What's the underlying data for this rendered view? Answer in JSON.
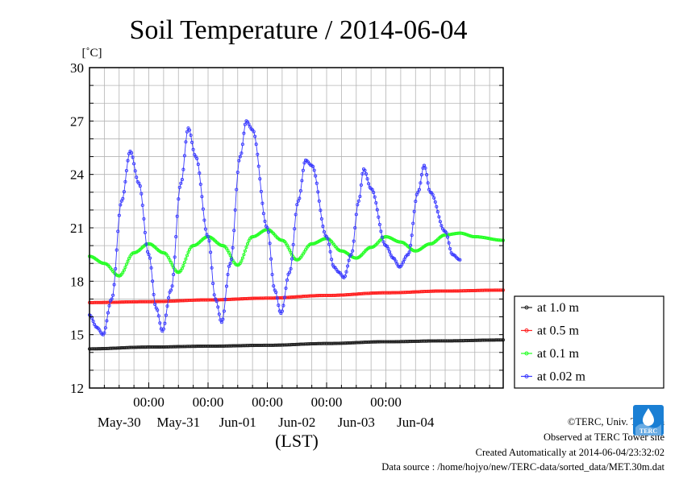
{
  "chart_data": {
    "type": "line",
    "title": "Soil Temperature / 2014-06-04",
    "ylabel": "[˚C]",
    "xlabel": "(LST)",
    "ylim": [
      12,
      30
    ],
    "yticks": [
      "12",
      "15",
      "18",
      "21",
      "24",
      "27",
      "30"
    ],
    "x_time_ticks": [
      "00:00",
      "00:00",
      "00:00",
      "00:00",
      "00:00"
    ],
    "x_date_ticks": [
      "May-30",
      "May-31",
      "Jun-01",
      "Jun-02",
      "Jun-03",
      "Jun-04"
    ],
    "xlim": [
      "2014-05-29 00:00",
      "2014-06-04 23:30"
    ],
    "grid": true,
    "legend_position": "bottom-right outside",
    "series": [
      {
        "name": "at 1.0 m",
        "color": "#222222",
        "points": [
          [
            "05-29 00:00",
            14.2
          ],
          [
            "05-30 00:00",
            14.3
          ],
          [
            "05-31 00:00",
            14.35
          ],
          [
            "06-01 00:00",
            14.4
          ],
          [
            "06-02 00:00",
            14.5
          ],
          [
            "06-03 00:00",
            14.6
          ],
          [
            "06-04 00:00",
            14.65
          ],
          [
            "06-04 23:30",
            14.7
          ]
        ]
      },
      {
        "name": "at 0.5 m",
        "color": "#ff2020",
        "points": [
          [
            "05-29 00:00",
            16.8
          ],
          [
            "05-30 00:00",
            16.85
          ],
          [
            "05-31 00:00",
            16.95
          ],
          [
            "06-01 00:00",
            17.05
          ],
          [
            "06-02 00:00",
            17.2
          ],
          [
            "06-03 00:00",
            17.35
          ],
          [
            "06-04 00:00",
            17.45
          ],
          [
            "06-04 23:30",
            17.5
          ]
        ]
      },
      {
        "name": "at 0.1 m",
        "color": "#22ff22",
        "points": [
          [
            "05-29 00:00",
            19.4
          ],
          [
            "05-29 06:00",
            19.0
          ],
          [
            "05-29 12:00",
            18.3
          ],
          [
            "05-29 18:00",
            19.6
          ],
          [
            "05-30 00:00",
            20.1
          ],
          [
            "05-30 06:00",
            19.6
          ],
          [
            "05-30 12:00",
            18.5
          ],
          [
            "05-30 18:00",
            20.0
          ],
          [
            "05-31 00:00",
            20.5
          ],
          [
            "05-31 06:00",
            20.0
          ],
          [
            "05-31 12:00",
            18.9
          ],
          [
            "05-31 18:00",
            20.5
          ],
          [
            "06-01 00:00",
            20.9
          ],
          [
            "06-01 06:00",
            20.3
          ],
          [
            "06-01 12:00",
            19.2
          ],
          [
            "06-01 18:00",
            20.1
          ],
          [
            "06-02 00:00",
            20.4
          ],
          [
            "06-02 06:00",
            19.7
          ],
          [
            "06-02 12:00",
            19.3
          ],
          [
            "06-02 18:00",
            19.9
          ],
          [
            "06-03 00:00",
            20.5
          ],
          [
            "06-03 06:00",
            20.2
          ],
          [
            "06-03 12:00",
            19.7
          ],
          [
            "06-03 18:00",
            20.1
          ],
          [
            "06-04 00:00",
            20.6
          ],
          [
            "06-04 06:00",
            20.7
          ],
          [
            "06-04 12:00",
            20.5
          ],
          [
            "06-04 23:30",
            20.3
          ]
        ]
      },
      {
        "name": "at 0.02 m",
        "color": "#3838ff",
        "points": [
          [
            "05-29 00:00",
            16.1
          ],
          [
            "05-29 03:00",
            15.4
          ],
          [
            "05-29 05:30",
            15.0
          ],
          [
            "05-29 09:00",
            17.0
          ],
          [
            "05-29 13:00",
            22.5
          ],
          [
            "05-29 16:30",
            25.3
          ],
          [
            "05-29 20:00",
            23.5
          ],
          [
            "05-30 00:00",
            19.5
          ],
          [
            "05-30 03:00",
            16.5
          ],
          [
            "05-30 05:30",
            15.2
          ],
          [
            "05-30 09:00",
            17.5
          ],
          [
            "05-30 13:00",
            23.5
          ],
          [
            "05-30 16:00",
            26.6
          ],
          [
            "05-30 19:00",
            25.0
          ],
          [
            "05-31 00:00",
            20.5
          ],
          [
            "05-31 03:00",
            17.0
          ],
          [
            "05-31 05:30",
            15.7
          ],
          [
            "05-31 09:00",
            19.0
          ],
          [
            "05-31 13:00",
            25.0
          ],
          [
            "05-31 15:30",
            27.0
          ],
          [
            "05-31 18:00",
            26.5
          ],
          [
            "06-01 00:00",
            21.0
          ],
          [
            "06-01 03:00",
            17.5
          ],
          [
            "06-01 05:30",
            16.2
          ],
          [
            "06-01 09:00",
            18.5
          ],
          [
            "06-01 12:30",
            22.5
          ],
          [
            "06-01 15:30",
            24.8
          ],
          [
            "06-01 18:00",
            24.5
          ],
          [
            "06-02 00:00",
            20.5
          ],
          [
            "06-02 03:00",
            18.8
          ],
          [
            "06-02 05:00",
            18.5
          ],
          [
            "06-02 07:00",
            18.2
          ],
          [
            "06-02 10:00",
            19.5
          ],
          [
            "06-02 13:00",
            22.5
          ],
          [
            "06-02 15:00",
            24.3
          ],
          [
            "06-02 18:00",
            23.2
          ],
          [
            "06-03 00:00",
            20.0
          ],
          [
            "06-03 03:00",
            19.3
          ],
          [
            "06-03 05:30",
            18.8
          ],
          [
            "06-03 09:00",
            19.5
          ],
          [
            "06-03 13:00",
            23.0
          ],
          [
            "06-03 15:30",
            24.5
          ],
          [
            "06-03 18:00",
            23.0
          ],
          [
            "06-04 00:00",
            20.8
          ],
          [
            "06-04 03:00",
            19.5
          ],
          [
            "06-04 06:00",
            19.2
          ]
        ]
      }
    ]
  },
  "credits": {
    "copyright": "©TERC, Univ. Tsukuba",
    "site": "Observed at TERC Tower site",
    "created": "Created Automatically at 2014-06-04/23:32:02",
    "source": "Data source : /home/hojyo/new/TERC-data/sorted_data/MET.30m.dat"
  },
  "logo": {
    "text": "TERC",
    "color": "#1a7fd4"
  }
}
